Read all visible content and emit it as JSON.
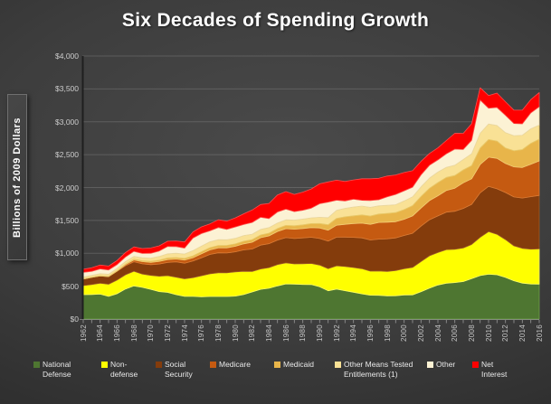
{
  "chart": {
    "title": "Six Decades of Spending Growth",
    "y_axis_title": "Billions of 2009 Dollars"
  },
  "chart_data": {
    "type": "area",
    "stacked": true,
    "title": "Six Decades of Spending Growth",
    "ylabel": "Billions of 2009 Dollars",
    "xlabel": "",
    "ylim": [
      0,
      4000
    ],
    "grid": "horizontal",
    "legend_position": "bottom",
    "x": [
      1962,
      1963,
      1964,
      1965,
      1966,
      1967,
      1968,
      1969,
      1970,
      1971,
      1972,
      1973,
      1974,
      1975,
      1976,
      1977,
      1978,
      1979,
      1980,
      1981,
      1982,
      1983,
      1984,
      1985,
      1986,
      1987,
      1988,
      1989,
      1990,
      1991,
      1992,
      1993,
      1994,
      1995,
      1996,
      1997,
      1998,
      1999,
      2000,
      2001,
      2002,
      2003,
      2004,
      2005,
      2006,
      2007,
      2008,
      2009,
      2010,
      2011,
      2012,
      2013,
      2014,
      2015,
      2016
    ],
    "x_label_every": 2,
    "y_ticks": [
      {
        "label": "$0",
        "value": 0
      },
      {
        "label": "$500",
        "value": 500
      },
      {
        "label": "$1,000",
        "value": 1000
      },
      {
        "label": "$1,500",
        "value": 1500
      },
      {
        "label": "$2,000",
        "value": 2000
      },
      {
        "label": "$2,500",
        "value": 2500
      },
      {
        "label": "$3,000",
        "value": 3000
      },
      {
        "label": "$3,500",
        "value": 3500
      },
      {
        "label": "$4,000",
        "value": 4000
      }
    ],
    "series": [
      {
        "name": "National Defense",
        "color": "#4E7631",
        "stroke": "#6FA04A",
        "values": [
          371,
          374,
          379,
          345,
          385,
          458,
          505,
          482,
          452,
          418,
          406,
          371,
          345,
          345,
          338,
          344,
          344,
          344,
          349,
          372,
          412,
          452,
          469,
          504,
          535,
          532,
          527,
          525,
          491,
          430,
          456,
          432,
          408,
          383,
          363,
          362,
          353,
          354,
          367,
          369,
          415,
          472,
          518,
          544,
          555,
          570,
          614,
          661,
          682,
          673,
          633,
          583,
          547,
          534,
          530
        ]
      },
      {
        "name": "Non-defense",
        "color": "#FFFF00",
        "stroke": "#FFFF66",
        "values": [
          138,
          150,
          165,
          184,
          207,
          216,
          222,
          202,
          212,
          233,
          254,
          266,
          266,
          284,
          320,
          343,
          360,
          358,
          368,
          354,
          311,
          309,
          313,
          325,
          318,
          306,
          314,
          320,
          329,
          336,
          353,
          367,
          375,
          382,
          365,
          369,
          372,
          383,
          399,
          416,
          459,
          490,
          493,
          512,
          506,
          511,
          520,
          581,
          647,
          616,
          575,
          530,
          528,
          529,
          536
        ]
      },
      {
        "name": "Social Security",
        "color": "#843C0C",
        "stroke": "#9E5A24",
        "values": [
          99,
          109,
          112,
          116,
          134,
          137,
          144,
          156,
          164,
          186,
          202,
          233,
          239,
          254,
          274,
          296,
          304,
          303,
          305,
          325,
          342,
          363,
          364,
          372,
          385,
          387,
          393,
          399,
          405,
          420,
          436,
          448,
          459,
          469,
          475,
          484,
          495,
          498,
          506,
          520,
          539,
          549,
          558,
          570,
          579,
          602,
          610,
          678,
          689,
          692,
          717,
          744,
          766,
          798,
          814
        ]
      },
      {
        "name": "Medicare",
        "color": "#C55A11",
        "stroke": "#DB7B35",
        "values": [
          0,
          0,
          0,
          0,
          1,
          17,
          28,
          33,
          34,
          40,
          43,
          43,
          47,
          51,
          60,
          68,
          75,
          78,
          84,
          92,
          104,
          113,
          119,
          131,
          137,
          142,
          143,
          147,
          161,
          165,
          182,
          194,
          209,
          225,
          238,
          254,
          254,
          245,
          246,
          263,
          275,
          291,
          306,
          328,
          351,
          388,
          389,
          430,
          444,
          463,
          441,
          458,
          464,
          494,
          526
        ]
      },
      {
        "name": "Medicaid",
        "color": "#E8B54A",
        "stroke": "#F2CC74",
        "values": [
          1,
          1,
          1,
          2,
          5,
          8,
          11,
          13,
          15,
          18,
          24,
          22,
          25,
          27,
          32,
          35,
          35,
          37,
          36,
          40,
          39,
          41,
          41,
          45,
          49,
          52,
          55,
          60,
          67,
          83,
          104,
          113,
          119,
          125,
          126,
          128,
          133,
          139,
          147,
          157,
          176,
          187,
          200,
          200,
          192,
          197,
          201,
          251,
          268,
          262,
          234,
          244,
          273,
          317,
          329
        ]
      },
      {
        "name": "Other Means Tested Entitlements (1)",
        "color": "#F9E195",
        "stroke": "#E6C766",
        "values": [
          30,
          31,
          33,
          35,
          37,
          40,
          43,
          46,
          50,
          58,
          64,
          66,
          68,
          80,
          87,
          89,
          89,
          86,
          86,
          87,
          83,
          86,
          85,
          84,
          85,
          86,
          88,
          89,
          95,
          108,
          122,
          130,
          134,
          134,
          132,
          126,
          122,
          120,
          131,
          135,
          147,
          156,
          161,
          154,
          157,
          160,
          180,
          225,
          236,
          238,
          234,
          230,
          218,
          222,
          215
        ]
      },
      {
        "name": "Other",
        "color": "#FCF2D4",
        "stroke": "#EBD9A4",
        "values": [
          70,
          61,
          73,
          64,
          59,
          69,
          76,
          66,
          74,
          82,
          111,
          102,
          89,
          191,
          190,
          167,
          185,
          157,
          173,
          168,
          178,
          184,
          138,
          168,
          163,
          129,
          135,
          146,
          206,
          237,
          154,
          113,
          118,
          88,
          105,
          91,
          129,
          156,
          154,
          146,
          182,
          195,
          185,
          205,
          244,
          151,
          205,
          505,
          241,
          274,
          264,
          186,
          173,
          242,
          279
        ]
      },
      {
        "name": "Net Interest",
        "color": "#FF0000",
        "stroke": "#FF4D4D",
        "values": [
          49,
          54,
          57,
          59,
          62,
          66,
          68,
          74,
          80,
          78,
          80,
          84,
          93,
          93,
          101,
          106,
          117,
          126,
          137,
          162,
          189,
          193,
          229,
          258,
          266,
          262,
          275,
          292,
          302,
          306,
          305,
          295,
          294,
          327,
          330,
          326,
          317,
          296,
          278,
          250,
          204,
          178,
          182,
          202,
          241,
          245,
          252,
          187,
          193,
          219,
          206,
          203,
          208,
          202,
          215
        ]
      }
    ],
    "legend": {
      "x_positions": [
        37,
        112,
        172,
        232,
        303,
        370,
        472,
        522
      ],
      "label_widths": [
        58,
        48,
        50,
        60,
        58,
        88,
        40,
        42
      ]
    }
  }
}
